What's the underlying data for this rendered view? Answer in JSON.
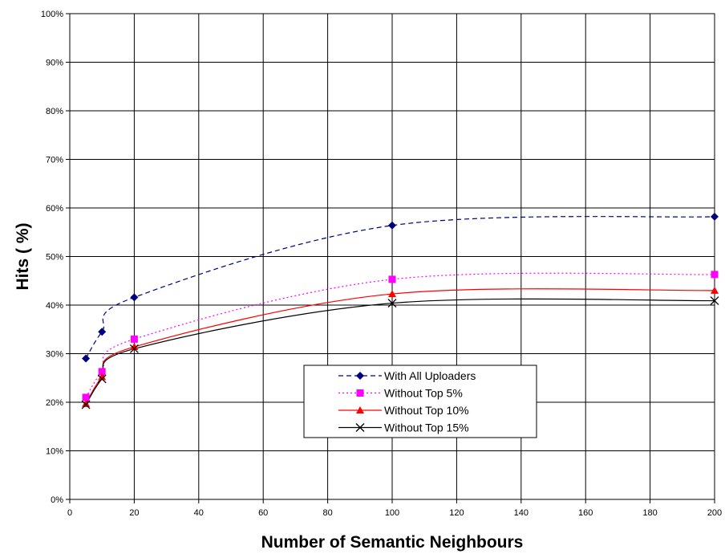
{
  "chart_data": {
    "type": "line",
    "title": "",
    "xlabel": "Number of Semantic Neighbours",
    "ylabel": "Hits ( %)",
    "xlim": [
      0,
      200
    ],
    "ylim": [
      0,
      100
    ],
    "xticks": [
      0,
      20,
      40,
      60,
      80,
      100,
      120,
      140,
      160,
      180,
      200
    ],
    "yticks": [
      0,
      10,
      20,
      30,
      40,
      50,
      60,
      70,
      80,
      90,
      100
    ],
    "ytick_suffix": "%",
    "grid": true,
    "legend_position": "bottom-center",
    "series": [
      {
        "name": "With All Uploaders",
        "x": [
          5,
          10,
          20,
          100,
          200
        ],
        "values": [
          29,
          34.5,
          41.6,
          56.4,
          58.2
        ],
        "color": "#000080",
        "dash": "dashed",
        "marker": "diamond"
      },
      {
        "name": "Without Top 5%",
        "x": [
          5,
          10,
          20,
          100,
          200
        ],
        "values": [
          21,
          26.3,
          33,
          45.3,
          46.3
        ],
        "color": "#FF00FF",
        "dash": "dotted",
        "marker": "square"
      },
      {
        "name": "Without Top 10%",
        "x": [
          5,
          10,
          20,
          100,
          200
        ],
        "values": [
          19.7,
          25.2,
          31.4,
          42.3,
          43
        ],
        "color": "#FF0000",
        "dash": "solid",
        "marker": "triangle"
      },
      {
        "name": "Without Top 15%",
        "x": [
          5,
          10,
          20,
          100,
          200
        ],
        "values": [
          19.5,
          24.8,
          31,
          40.4,
          40.9
        ],
        "color": "#000000",
        "dash": "solid",
        "marker": "x"
      }
    ]
  }
}
